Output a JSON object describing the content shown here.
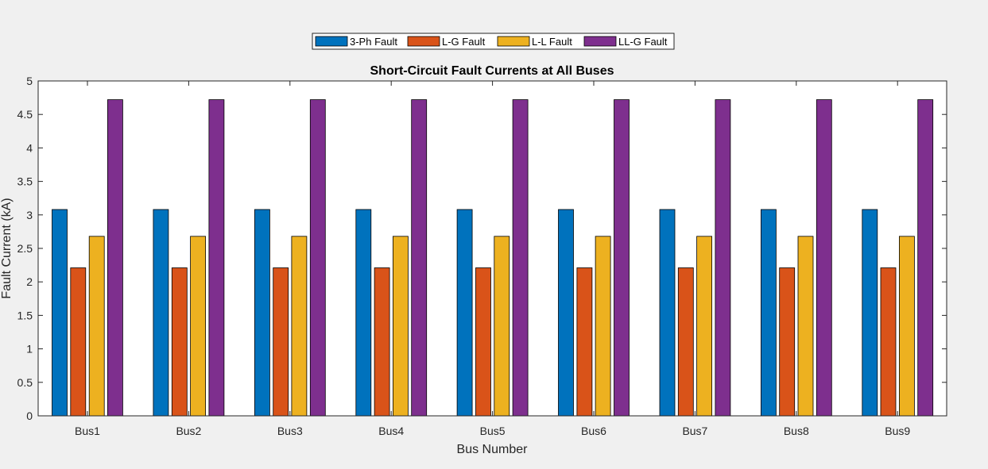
{
  "chart_data": {
    "type": "bar",
    "title": "Short-Circuit Fault Currents at All Buses",
    "xlabel": "Bus Number",
    "ylabel": "Fault Current (kA)",
    "ylim": [
      0,
      5
    ],
    "yticks": [
      "0",
      "0.5",
      "1",
      "1.5",
      "2",
      "2.5",
      "3",
      "3.5",
      "4",
      "4.5",
      "5"
    ],
    "grid": false,
    "legend_position": "top-center",
    "categories": [
      "Bus1",
      "Bus2",
      "Bus3",
      "Bus4",
      "Bus5",
      "Bus6",
      "Bus7",
      "Bus8",
      "Bus9"
    ],
    "series": [
      {
        "name": "3-Ph Fault",
        "color": "#0072BD",
        "values": [
          3.08,
          3.08,
          3.08,
          3.08,
          3.08,
          3.08,
          3.08,
          3.08,
          3.08
        ]
      },
      {
        "name": "L-G Fault",
        "color": "#D95319",
        "values": [
          2.21,
          2.21,
          2.21,
          2.21,
          2.21,
          2.21,
          2.21,
          2.21,
          2.21
        ]
      },
      {
        "name": "L-L Fault",
        "color": "#EDB120",
        "values": [
          2.68,
          2.68,
          2.68,
          2.68,
          2.68,
          2.68,
          2.68,
          2.68,
          2.68
        ]
      },
      {
        "name": "LL-G Fault",
        "color": "#7E2F8E",
        "values": [
          4.72,
          4.72,
          4.72,
          4.72,
          4.72,
          4.72,
          4.72,
          4.72,
          4.72
        ]
      }
    ]
  }
}
